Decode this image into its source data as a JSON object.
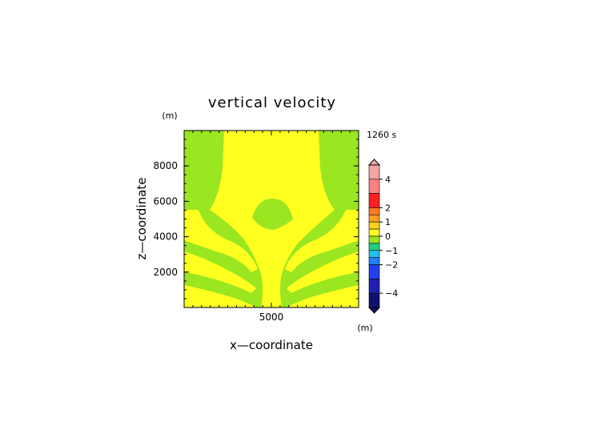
{
  "chart_data": {
    "type": "heatmap",
    "title": "vertical velocity",
    "time_label": "1260 s",
    "xlabel": "x—coordinate",
    "ylabel": "z—coordinate",
    "x_unit": "(m)",
    "z_unit": "(m)",
    "x_ticks": [
      {
        "value": 5000,
        "label": "5000"
      }
    ],
    "z_ticks": [
      {
        "value": 2000,
        "label": "2000"
      },
      {
        "value": 4000,
        "label": "4000"
      },
      {
        "value": 6000,
        "label": "6000"
      },
      {
        "value": 8000,
        "label": "8000"
      }
    ],
    "xlim": [
      0,
      10000
    ],
    "zlim": [
      0,
      10000
    ],
    "colorbar": {
      "min": -5,
      "max": 5,
      "ticks": [
        {
          "value": 4,
          "label": "4"
        },
        {
          "value": 2,
          "label": "2"
        },
        {
          "value": 1,
          "label": "1"
        },
        {
          "value": 0,
          "label": "0"
        },
        {
          "value": -1,
          "label": "−1"
        },
        {
          "value": -2,
          "label": "−2"
        },
        {
          "value": -4,
          "label": "−4"
        }
      ],
      "levels": [
        {
          "from": 4.0,
          "to": 5.0,
          "color": "#f4a6a6"
        },
        {
          "from": 3.0,
          "to": 4.0,
          "color": "#ff8080"
        },
        {
          "from": 2.0,
          "to": 3.0,
          "color": "#ff2020"
        },
        {
          "from": 1.5,
          "to": 2.0,
          "color": "#ff7a20"
        },
        {
          "from": 1.0,
          "to": 1.5,
          "color": "#ffa020"
        },
        {
          "from": 0.5,
          "to": 1.0,
          "color": "#ffcf20"
        },
        {
          "from": 0.0,
          "to": 0.5,
          "color": "#ffff20"
        },
        {
          "from": -0.5,
          "to": 0.0,
          "color": "#9ae620"
        },
        {
          "from": -1.0,
          "to": -0.5,
          "color": "#20d080"
        },
        {
          "from": -1.5,
          "to": -1.0,
          "color": "#20c0f0"
        },
        {
          "from": -2.0,
          "to": -1.5,
          "color": "#2080ff"
        },
        {
          "from": -3.0,
          "to": -2.0,
          "color": "#2040f0"
        },
        {
          "from": -4.0,
          "to": -3.0,
          "color": "#2020b0"
        },
        {
          "from": -5.0,
          "to": -4.0,
          "color": "#101070"
        }
      ]
    },
    "field_colors": {
      "positive_0_to_0.5": "#ffff20",
      "negative_-0.5_to_0": "#9ae620"
    }
  }
}
